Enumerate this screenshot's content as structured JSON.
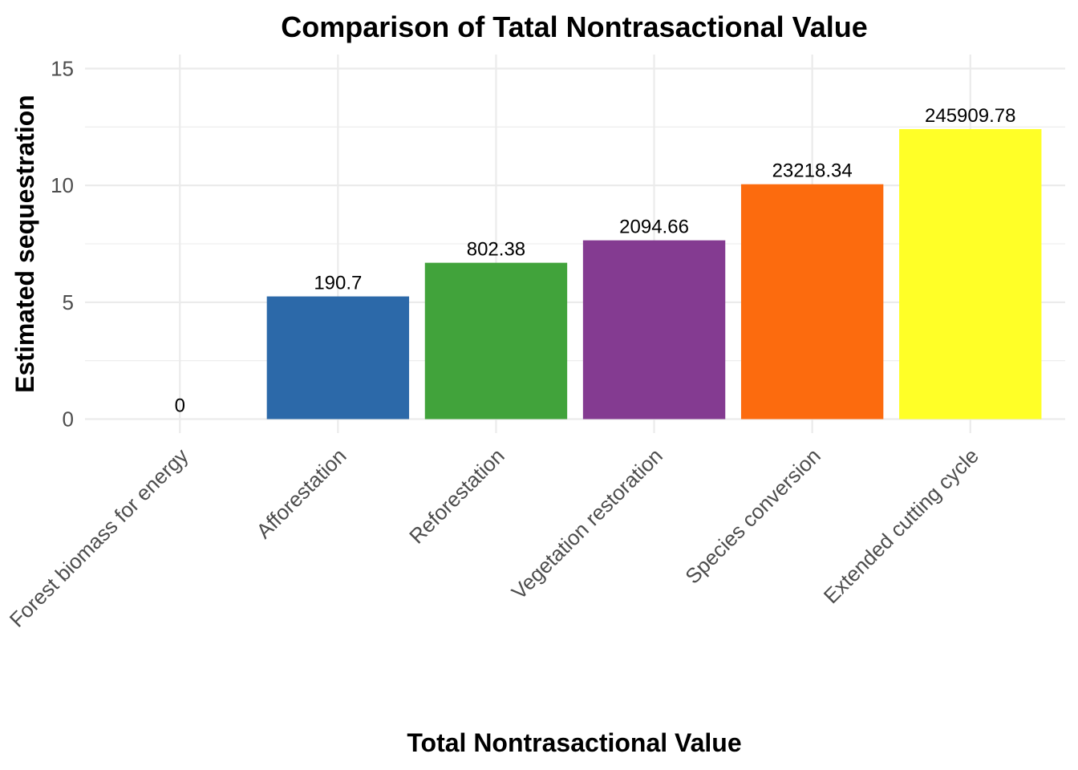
{
  "chart_data": {
    "type": "bar",
    "title": "Comparison of Tatal Nontrasactional Value",
    "xlabel": "Total Nontrasactional Value",
    "ylabel": "Estimated sequestration",
    "categories": [
      "Forest biomass for energy",
      "Afforestation",
      "Reforestation",
      "Vegetation restoration",
      "Species conversion",
      "Extended cutting cycle"
    ],
    "values": [
      0,
      5.25,
      6.69,
      7.65,
      10.05,
      12.41
    ],
    "data_labels": [
      "0",
      "190.7",
      "802.38",
      "2094.66",
      "23218.34",
      "245909.78"
    ],
    "colors": [
      "#377EB8",
      "#2C69A9",
      "#41A33B",
      "#843B91",
      "#FC6B0E",
      "#FFFF27"
    ],
    "ylim": [
      -0.6,
      15.6
    ],
    "yticks": [
      0,
      5,
      10,
      15
    ],
    "ytick_labels": [
      "0",
      "5",
      "10",
      "15"
    ],
    "grid": true,
    "legend": "none"
  }
}
